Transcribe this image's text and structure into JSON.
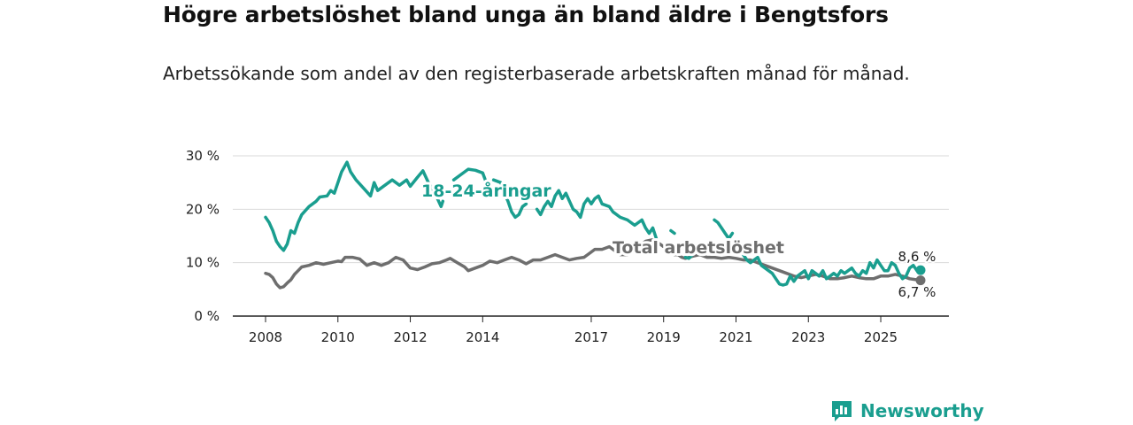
{
  "header": {
    "title": "Högre arbetslöshet bland unga än bland äldre i Bengtsfors",
    "subtitle": "Arbetssökande som andel av den registerbaserade arbetskraften månad för månad."
  },
  "brand": {
    "name": "Newsworthy",
    "icon": "bar-chart-icon",
    "color": "#1a9e8f"
  },
  "chart_data": {
    "type": "line",
    "title": "Högre arbetslöshet bland unga än bland äldre i Bengtsfors",
    "xlabel": "",
    "ylabel": "",
    "x_range": [
      2007.8,
      2026.5
    ],
    "ylim": [
      0,
      30
    ],
    "yticks": [
      0,
      10,
      20,
      30
    ],
    "ytick_labels": [
      "0 %",
      "10 %",
      "20 %",
      "30 %"
    ],
    "xticks": [
      2008,
      2010,
      2012,
      2014,
      2017,
      2019,
      2021,
      2023,
      2025
    ],
    "xtick_labels": [
      "2008",
      "2010",
      "2012",
      "2014",
      "2017",
      "2019",
      "2021",
      "2023",
      "2025"
    ],
    "grid": true,
    "series": [
      {
        "name": "18-24-åringar",
        "label": "18-24-åringar",
        "color": "#1a9e8f",
        "end_label": "8,6 %",
        "segments": [
          [
            [
              2008.0,
              18.5
            ],
            [
              2008.1,
              17.5
            ],
            [
              2008.2,
              16.0
            ],
            [
              2008.3,
              14.0
            ],
            [
              2008.4,
              13.0
            ],
            [
              2008.5,
              12.3
            ],
            [
              2008.6,
              13.5
            ],
            [
              2008.7,
              16.0
            ],
            [
              2008.8,
              15.5
            ],
            [
              2008.9,
              17.5
            ],
            [
              2009.0,
              19.0
            ],
            [
              2009.2,
              20.5
            ],
            [
              2009.4,
              21.5
            ],
            [
              2009.5,
              22.3
            ],
            [
              2009.7,
              22.5
            ],
            [
              2009.8,
              23.5
            ],
            [
              2009.9,
              23.0
            ],
            [
              2010.0,
              25.0
            ],
            [
              2010.1,
              27.0
            ],
            [
              2010.25,
              28.8
            ],
            [
              2010.35,
              27.0
            ],
            [
              2010.5,
              25.5
            ],
            [
              2010.7,
              24.0
            ],
            [
              2010.9,
              22.5
            ],
            [
              2011.0,
              25.0
            ],
            [
              2011.1,
              23.5
            ],
            [
              2011.3,
              24.5
            ],
            [
              2011.5,
              25.5
            ],
            [
              2011.7,
              24.5
            ],
            [
              2011.9,
              25.5
            ],
            [
              2012.0,
              24.3
            ],
            [
              2012.2,
              26.0
            ],
            [
              2012.35,
              27.2
            ],
            [
              2012.5,
              25.0
            ],
            [
              2012.6,
              24.0
            ],
            [
              2012.75,
              22.0
            ],
            [
              2012.85,
              20.5
            ],
            [
              2012.9,
              21.5
            ]
          ],
          [
            [
              2013.2,
              25.5
            ],
            [
              2013.4,
              26.5
            ],
            [
              2013.6,
              27.5
            ],
            [
              2013.8,
              27.3
            ],
            [
              2014.0,
              26.8
            ],
            [
              2014.1,
              25.0
            ]
          ],
          [
            [
              2014.3,
              25.5
            ],
            [
              2014.5,
              25.0
            ],
            [
              2014.6,
              23.0
            ],
            [
              2014.7,
              21.5
            ],
            [
              2014.8,
              19.5
            ],
            [
              2014.9,
              18.5
            ],
            [
              2015.0,
              19.0
            ],
            [
              2015.1,
              20.5
            ],
            [
              2015.2,
              21.0
            ]
          ],
          [
            [
              2015.5,
              20.0
            ],
            [
              2015.6,
              19.0
            ],
            [
              2015.7,
              20.5
            ],
            [
              2015.8,
              21.5
            ],
            [
              2015.9,
              20.5
            ],
            [
              2016.0,
              22.5
            ],
            [
              2016.1,
              23.5
            ],
            [
              2016.2,
              22.0
            ],
            [
              2016.3,
              23.0
            ],
            [
              2016.4,
              21.5
            ],
            [
              2016.5,
              20.0
            ],
            [
              2016.6,
              19.5
            ],
            [
              2016.7,
              18.5
            ],
            [
              2016.8,
              21.0
            ],
            [
              2016.9,
              22.0
            ],
            [
              2017.0,
              21.0
            ],
            [
              2017.1,
              22.0
            ],
            [
              2017.2,
              22.5
            ],
            [
              2017.3,
              21.0
            ],
            [
              2017.5,
              20.5
            ],
            [
              2017.6,
              19.5
            ],
            [
              2017.8,
              18.5
            ],
            [
              2018.0,
              18.0
            ],
            [
              2018.2,
              17.0
            ],
            [
              2018.4,
              18.0
            ],
            [
              2018.5,
              16.5
            ],
            [
              2018.6,
              15.5
            ],
            [
              2018.7,
              16.5
            ],
            [
              2018.8,
              14.5
            ]
          ],
          [
            [
              2019.2,
              16.0
            ],
            [
              2019.3,
              15.5
            ]
          ],
          [
            [
              2019.6,
              11.0
            ],
            [
              2019.7,
              10.8
            ],
            [
              2019.8,
              11.5
            ]
          ],
          [
            [
              2020.4,
              18.0
            ],
            [
              2020.5,
              17.5
            ],
            [
              2020.6,
              16.5
            ],
            [
              2020.7,
              15.5
            ],
            [
              2020.8,
              14.5
            ],
            [
              2020.9,
              15.5
            ]
          ],
          [
            [
              2021.2,
              11.5
            ],
            [
              2021.3,
              10.5
            ],
            [
              2021.4,
              10.0
            ],
            [
              2021.5,
              10.5
            ],
            [
              2021.6,
              11.0
            ],
            [
              2021.7,
              9.5
            ],
            [
              2021.8,
              9.0
            ],
            [
              2021.9,
              8.5
            ],
            [
              2022.0,
              8.0
            ],
            [
              2022.1,
              7.0
            ],
            [
              2022.2,
              6.0
            ],
            [
              2022.3,
              5.8
            ],
            [
              2022.4,
              6.0
            ],
            [
              2022.5,
              7.5
            ],
            [
              2022.6,
              6.5
            ],
            [
              2022.7,
              7.5
            ],
            [
              2022.8,
              8.0
            ],
            [
              2022.9,
              8.5
            ],
            [
              2023.0,
              7.0
            ],
            [
              2023.1,
              8.5
            ],
            [
              2023.2,
              8.0
            ],
            [
              2023.3,
              7.5
            ],
            [
              2023.4,
              8.5
            ],
            [
              2023.5,
              7.0
            ],
            [
              2023.6,
              7.5
            ],
            [
              2023.7,
              8.0
            ],
            [
              2023.8,
              7.5
            ],
            [
              2023.9,
              8.5
            ],
            [
              2024.0,
              8.0
            ],
            [
              2024.1,
              8.5
            ],
            [
              2024.2,
              9.0
            ],
            [
              2024.3,
              8.0
            ],
            [
              2024.4,
              7.5
            ],
            [
              2024.5,
              8.5
            ],
            [
              2024.6,
              8.0
            ],
            [
              2024.7,
              10.0
            ],
            [
              2024.8,
              9.0
            ],
            [
              2024.9,
              10.5
            ],
            [
              2025.0,
              9.5
            ],
            [
              2025.1,
              8.5
            ],
            [
              2025.2,
              8.5
            ],
            [
              2025.3,
              10.0
            ],
            [
              2025.4,
              9.5
            ],
            [
              2025.5,
              8.0
            ],
            [
              2025.6,
              7.0
            ],
            [
              2025.7,
              7.5
            ],
            [
              2025.8,
              9.0
            ],
            [
              2025.9,
              9.5
            ],
            [
              2026.0,
              8.5
            ],
            [
              2026.1,
              8.6
            ]
          ]
        ],
        "last": [
          2026.1,
          8.6
        ]
      },
      {
        "name": "Total arbetslöshet",
        "label": "Total arbetslöshet",
        "color": "#6e6e6e",
        "end_label": "6,7 %",
        "segments": [
          [
            [
              2008.0,
              8.0
            ],
            [
              2008.1,
              7.8
            ],
            [
              2008.2,
              7.2
            ],
            [
              2008.3,
              6.0
            ],
            [
              2008.4,
              5.3
            ],
            [
              2008.5,
              5.5
            ],
            [
              2008.6,
              6.2
            ],
            [
              2008.7,
              6.8
            ],
            [
              2008.8,
              7.8
            ],
            [
              2008.9,
              8.5
            ],
            [
              2009.0,
              9.2
            ],
            [
              2009.2,
              9.5
            ],
            [
              2009.4,
              10.0
            ],
            [
              2009.6,
              9.7
            ],
            [
              2009.8,
              10.0
            ],
            [
              2010.0,
              10.3
            ],
            [
              2010.1,
              10.2
            ],
            [
              2010.2,
              11.0
            ],
            [
              2010.4,
              11.0
            ],
            [
              2010.6,
              10.7
            ],
            [
              2010.8,
              9.5
            ],
            [
              2011.0,
              10.0
            ],
            [
              2011.2,
              9.5
            ],
            [
              2011.4,
              10.0
            ],
            [
              2011.5,
              10.5
            ],
            [
              2011.6,
              11.0
            ],
            [
              2011.8,
              10.5
            ],
            [
              2012.0,
              9.0
            ],
            [
              2012.2,
              8.7
            ],
            [
              2012.4,
              9.2
            ],
            [
              2012.6,
              9.8
            ],
            [
              2012.8,
              10.0
            ],
            [
              2013.0,
              10.5
            ],
            [
              2013.1,
              10.8
            ],
            [
              2013.3,
              10.0
            ],
            [
              2013.5,
              9.2
            ],
            [
              2013.6,
              8.5
            ],
            [
              2013.8,
              9.0
            ],
            [
              2014.0,
              9.5
            ],
            [
              2014.2,
              10.3
            ],
            [
              2014.4,
              10.0
            ],
            [
              2014.6,
              10.5
            ],
            [
              2014.8,
              11.0
            ],
            [
              2015.0,
              10.5
            ],
            [
              2015.2,
              9.8
            ],
            [
              2015.4,
              10.5
            ],
            [
              2015.6,
              10.5
            ],
            [
              2015.8,
              11.0
            ],
            [
              2016.0,
              11.5
            ],
            [
              2016.2,
              11.0
            ],
            [
              2016.4,
              10.5
            ],
            [
              2016.6,
              10.8
            ],
            [
              2016.8,
              11.0
            ],
            [
              2017.0,
              12.0
            ],
            [
              2017.1,
              12.5
            ],
            [
              2017.3,
              12.5
            ],
            [
              2017.5,
              13.0
            ],
            [
              2017.6,
              12.5
            ],
            [
              2017.8,
              11.5
            ],
            [
              2018.0,
              11.5
            ],
            [
              2018.2,
              12.5
            ],
            [
              2018.4,
              13.5
            ],
            [
              2018.5,
              14.0
            ],
            [
              2018.7,
              14.3
            ],
            [
              2018.9,
              13.5
            ],
            [
              2019.0,
              13.0
            ],
            [
              2019.2,
              12.5
            ],
            [
              2019.3,
              11.5
            ],
            [
              2019.4,
              11.5
            ],
            [
              2019.5,
              11.0
            ],
            [
              2019.6,
              10.8
            ],
            [
              2019.8,
              11.2
            ],
            [
              2020.0,
              11.5
            ],
            [
              2020.2,
              11.0
            ],
            [
              2020.4,
              11.0
            ],
            [
              2020.6,
              10.8
            ],
            [
              2020.8,
              11.0
            ],
            [
              2021.0,
              10.8
            ],
            [
              2021.2,
              10.5
            ],
            [
              2021.4,
              10.5
            ],
            [
              2021.6,
              10.0
            ],
            [
              2021.8,
              9.5
            ],
            [
              2022.0,
              9.0
            ],
            [
              2022.2,
              8.5
            ],
            [
              2022.4,
              8.0
            ],
            [
              2022.6,
              7.5
            ],
            [
              2022.8,
              7.2
            ],
            [
              2023.0,
              7.5
            ],
            [
              2023.2,
              7.8
            ],
            [
              2023.4,
              7.5
            ],
            [
              2023.6,
              7.0
            ],
            [
              2023.8,
              7.0
            ],
            [
              2024.0,
              7.2
            ],
            [
              2024.2,
              7.5
            ],
            [
              2024.4,
              7.2
            ],
            [
              2024.6,
              7.0
            ],
            [
              2024.8,
              7.0
            ],
            [
              2025.0,
              7.5
            ],
            [
              2025.2,
              7.5
            ],
            [
              2025.4,
              7.8
            ],
            [
              2025.6,
              7.5
            ],
            [
              2025.8,
              7.0
            ],
            [
              2026.0,
              6.8
            ],
            [
              2026.1,
              6.7
            ]
          ]
        ],
        "last": [
          2026.1,
          6.7
        ]
      }
    ]
  }
}
